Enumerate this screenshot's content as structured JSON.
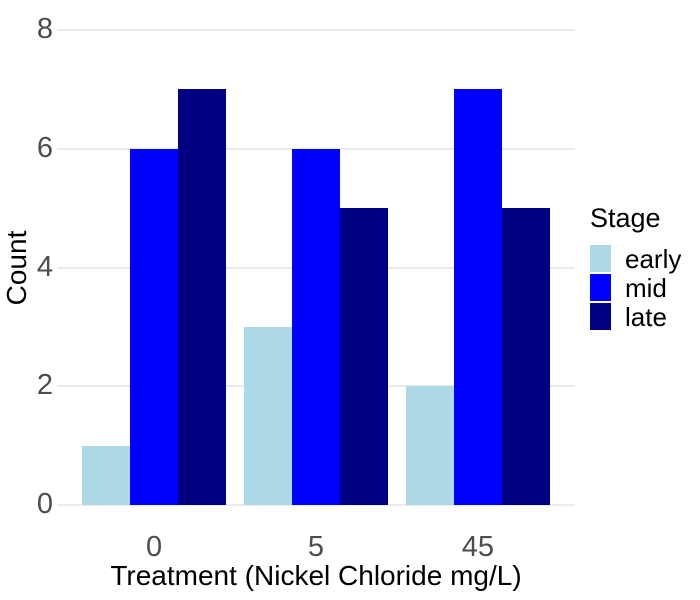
{
  "chart_data": {
    "type": "bar",
    "title": "",
    "categories": [
      "0",
      "5",
      "45"
    ],
    "series": [
      {
        "name": "early",
        "color": "#add8e6",
        "values": [
          1,
          3,
          2
        ]
      },
      {
        "name": "mid",
        "color": "#0000ff",
        "values": [
          6,
          6,
          7
        ]
      },
      {
        "name": "late",
        "color": "#000080",
        "values": [
          7,
          5,
          5
        ]
      }
    ],
    "xlabel": "Treatment (Nickel Chloride mg/L)",
    "ylabel": "Count",
    "ylim": [
      0,
      8
    ],
    "yticks": [
      0,
      2,
      4,
      6,
      8
    ],
    "legend": {
      "title": "Stage",
      "position": "right"
    },
    "grid": "horizontal-major-only",
    "colors": {
      "background": "#ffffff",
      "gridline": "#ebebeb",
      "axis_tick_text": "#4d4d4d",
      "axis_title_text": "#000000",
      "legend_text": "#000000"
    }
  }
}
